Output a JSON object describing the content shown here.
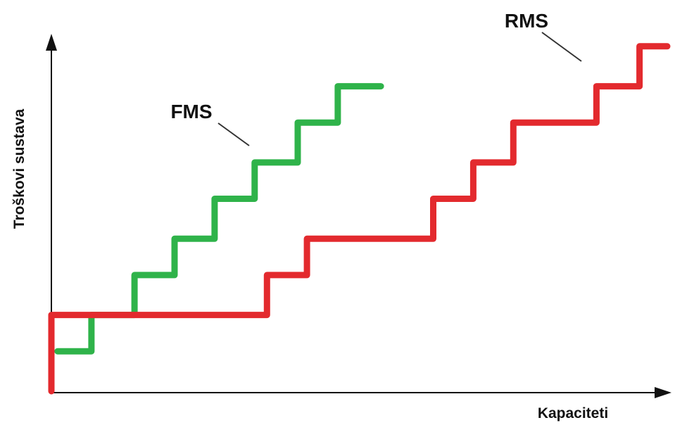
{
  "chart_data": {
    "type": "line",
    "step": true,
    "xlabel": "Kapaciteti",
    "ylabel": "Troškovi sustava",
    "xlim": [
      0,
      100
    ],
    "ylim": [
      0,
      100
    ],
    "tick_labels": false,
    "grid": false,
    "legend": "none (series labelled directly on the lines)",
    "series": [
      {
        "name": "FMS",
        "color": "#2fb34a",
        "x": [
          1,
          6.5,
          6.5,
          13.5,
          13.5,
          20,
          20,
          26.5,
          26.5,
          33,
          33,
          40,
          40,
          46.5,
          46.5,
          53.5
        ],
        "y": [
          11,
          11,
          21,
          21,
          32,
          32,
          42,
          42,
          53,
          53,
          63,
          63,
          74,
          74,
          84,
          84
        ]
      },
      {
        "name": "RMS",
        "color": "#e32a2e",
        "x": [
          0,
          0,
          35,
          35,
          41.5,
          41.5,
          62,
          62,
          68.5,
          68.5,
          75,
          75,
          88.5,
          88.5,
          95.5,
          95.5,
          100
        ],
        "y": [
          0,
          21,
          21,
          32,
          32,
          42,
          42,
          53,
          53,
          63,
          63,
          74,
          74,
          84,
          84,
          95,
          95
        ]
      }
    ]
  }
}
